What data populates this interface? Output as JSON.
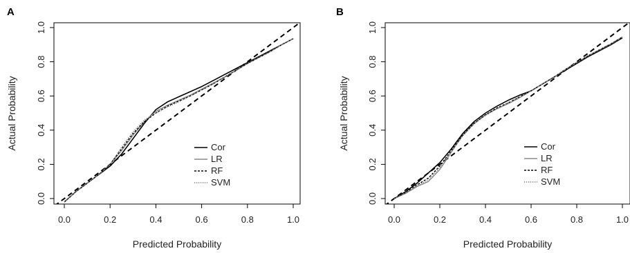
{
  "chart_data": [
    {
      "panel_label": "A",
      "type": "line",
      "xlabel": "Predicted Probability",
      "ylabel": "Actual Probability",
      "xlim": [
        0,
        1
      ],
      "ylim": [
        0,
        1
      ],
      "x_ticks": [
        "0.0",
        "0.2",
        "0.4",
        "0.6",
        "0.8",
        "1.0"
      ],
      "y_ticks": [
        "0.0",
        "0.2",
        "0.4",
        "0.6",
        "0.8",
        "1.0"
      ],
      "grid": false,
      "legend_position": "bottom-right",
      "series": [
        {
          "name": "Cor",
          "color": "#000000",
          "style": "solid",
          "x": [
            0.0,
            0.05,
            0.1,
            0.15,
            0.2,
            0.25,
            0.3,
            0.35,
            0.4,
            0.45,
            0.5,
            0.55,
            0.6,
            0.65,
            0.7,
            0.75,
            0.8,
            0.85,
            0.9,
            0.95,
            1.0
          ],
          "y": [
            -0.02,
            0.04,
            0.09,
            0.14,
            0.19,
            0.26,
            0.35,
            0.44,
            0.52,
            0.565,
            0.595,
            0.625,
            0.655,
            0.69,
            0.725,
            0.76,
            0.795,
            0.83,
            0.865,
            0.9,
            0.935
          ]
        },
        {
          "name": "LR",
          "color": "#888888",
          "style": "solid",
          "x": [
            0.0,
            0.05,
            0.1,
            0.15,
            0.2,
            0.25,
            0.3,
            0.35,
            0.4,
            0.45,
            0.5,
            0.55,
            0.6,
            0.65,
            0.7,
            0.75,
            0.8,
            0.85,
            0.9,
            0.95,
            1.0
          ],
          "y": [
            -0.02,
            0.04,
            0.09,
            0.14,
            0.2,
            0.28,
            0.37,
            0.45,
            0.51,
            0.545,
            0.575,
            0.605,
            0.64,
            0.675,
            0.71,
            0.75,
            0.79,
            0.825,
            0.86,
            0.9,
            0.935
          ]
        },
        {
          "name": "RF",
          "color": "#000000",
          "style": "dashed",
          "x": [
            0.0,
            0.05,
            0.1,
            0.15,
            0.2,
            0.25,
            0.3,
            0.35,
            0.4,
            0.45,
            0.5,
            0.55,
            0.6,
            0.65,
            0.7,
            0.75,
            0.8,
            0.85,
            0.9,
            0.95,
            1.0
          ],
          "y": [
            -0.02,
            0.04,
            0.09,
            0.14,
            0.2,
            0.29,
            0.38,
            0.45,
            0.5,
            0.54,
            0.57,
            0.6,
            0.635,
            0.67,
            0.71,
            0.75,
            0.79,
            0.825,
            0.86,
            0.9,
            0.935
          ]
        },
        {
          "name": "SVM",
          "color": "#777777",
          "style": "dotted",
          "x": [
            0.0,
            0.05,
            0.1,
            0.15,
            0.2,
            0.25,
            0.3,
            0.35,
            0.4,
            0.45,
            0.5,
            0.55,
            0.6,
            0.65,
            0.7,
            0.75,
            0.8,
            0.85,
            0.9,
            0.95,
            1.0
          ],
          "y": [
            -0.02,
            0.04,
            0.09,
            0.14,
            0.2,
            0.3,
            0.39,
            0.46,
            0.5,
            0.535,
            0.565,
            0.6,
            0.635,
            0.67,
            0.71,
            0.75,
            0.79,
            0.825,
            0.86,
            0.9,
            0.935
          ]
        }
      ]
    },
    {
      "panel_label": "B",
      "type": "line",
      "xlabel": "Predicted Probability",
      "ylabel": "Actual Probability",
      "xlim": [
        0,
        1
      ],
      "ylim": [
        0,
        1
      ],
      "x_ticks": [
        "0.0",
        "0.2",
        "0.4",
        "0.6",
        "0.8",
        "1.0"
      ],
      "y_ticks": [
        "0.0",
        "0.2",
        "0.4",
        "0.6",
        "0.8",
        "1.0"
      ],
      "grid": false,
      "legend_position": "bottom-right",
      "series": [
        {
          "name": "Cor",
          "color": "#000000",
          "style": "solid",
          "x": [
            0.0,
            0.05,
            0.1,
            0.15,
            0.2,
            0.25,
            0.3,
            0.35,
            0.4,
            0.45,
            0.5,
            0.55,
            0.6,
            0.65,
            0.7,
            0.75,
            0.8,
            0.85,
            0.9,
            0.95,
            1.0
          ],
          "y": [
            0.0,
            0.04,
            0.09,
            0.15,
            0.21,
            0.29,
            0.38,
            0.45,
            0.5,
            0.54,
            0.575,
            0.605,
            0.63,
            0.67,
            0.71,
            0.75,
            0.79,
            0.83,
            0.865,
            0.9,
            0.94
          ]
        },
        {
          "name": "LR",
          "color": "#888888",
          "style": "solid",
          "x": [
            0.0,
            0.05,
            0.1,
            0.15,
            0.2,
            0.25,
            0.3,
            0.35,
            0.4,
            0.45,
            0.5,
            0.55,
            0.6,
            0.65,
            0.7,
            0.75,
            0.8,
            0.85,
            0.9,
            0.95,
            1.0
          ],
          "y": [
            0.0,
            0.03,
            0.07,
            0.1,
            0.17,
            0.27,
            0.37,
            0.44,
            0.49,
            0.525,
            0.555,
            0.59,
            0.63,
            0.67,
            0.71,
            0.755,
            0.795,
            0.835,
            0.87,
            0.905,
            0.945
          ]
        },
        {
          "name": "RF",
          "color": "#000000",
          "style": "dashed",
          "x": [
            0.0,
            0.05,
            0.1,
            0.15,
            0.2,
            0.25,
            0.3,
            0.35,
            0.4,
            0.45,
            0.5,
            0.55,
            0.6,
            0.65,
            0.7,
            0.75,
            0.8,
            0.85,
            0.9,
            0.95,
            1.0
          ],
          "y": [
            0.0,
            0.035,
            0.08,
            0.12,
            0.19,
            0.28,
            0.37,
            0.44,
            0.49,
            0.53,
            0.56,
            0.595,
            0.63,
            0.67,
            0.71,
            0.755,
            0.795,
            0.835,
            0.87,
            0.905,
            0.945
          ]
        },
        {
          "name": "SVM",
          "color": "#777777",
          "style": "dotted",
          "x": [
            0.0,
            0.05,
            0.1,
            0.15,
            0.2,
            0.25,
            0.3,
            0.35,
            0.4,
            0.45,
            0.5,
            0.55,
            0.6,
            0.65,
            0.7,
            0.75,
            0.8,
            0.85,
            0.9,
            0.95,
            1.0
          ],
          "y": [
            0.0,
            0.035,
            0.075,
            0.11,
            0.18,
            0.275,
            0.365,
            0.435,
            0.485,
            0.525,
            0.56,
            0.595,
            0.63,
            0.67,
            0.71,
            0.755,
            0.795,
            0.835,
            0.87,
            0.905,
            0.945
          ]
        }
      ]
    }
  ]
}
